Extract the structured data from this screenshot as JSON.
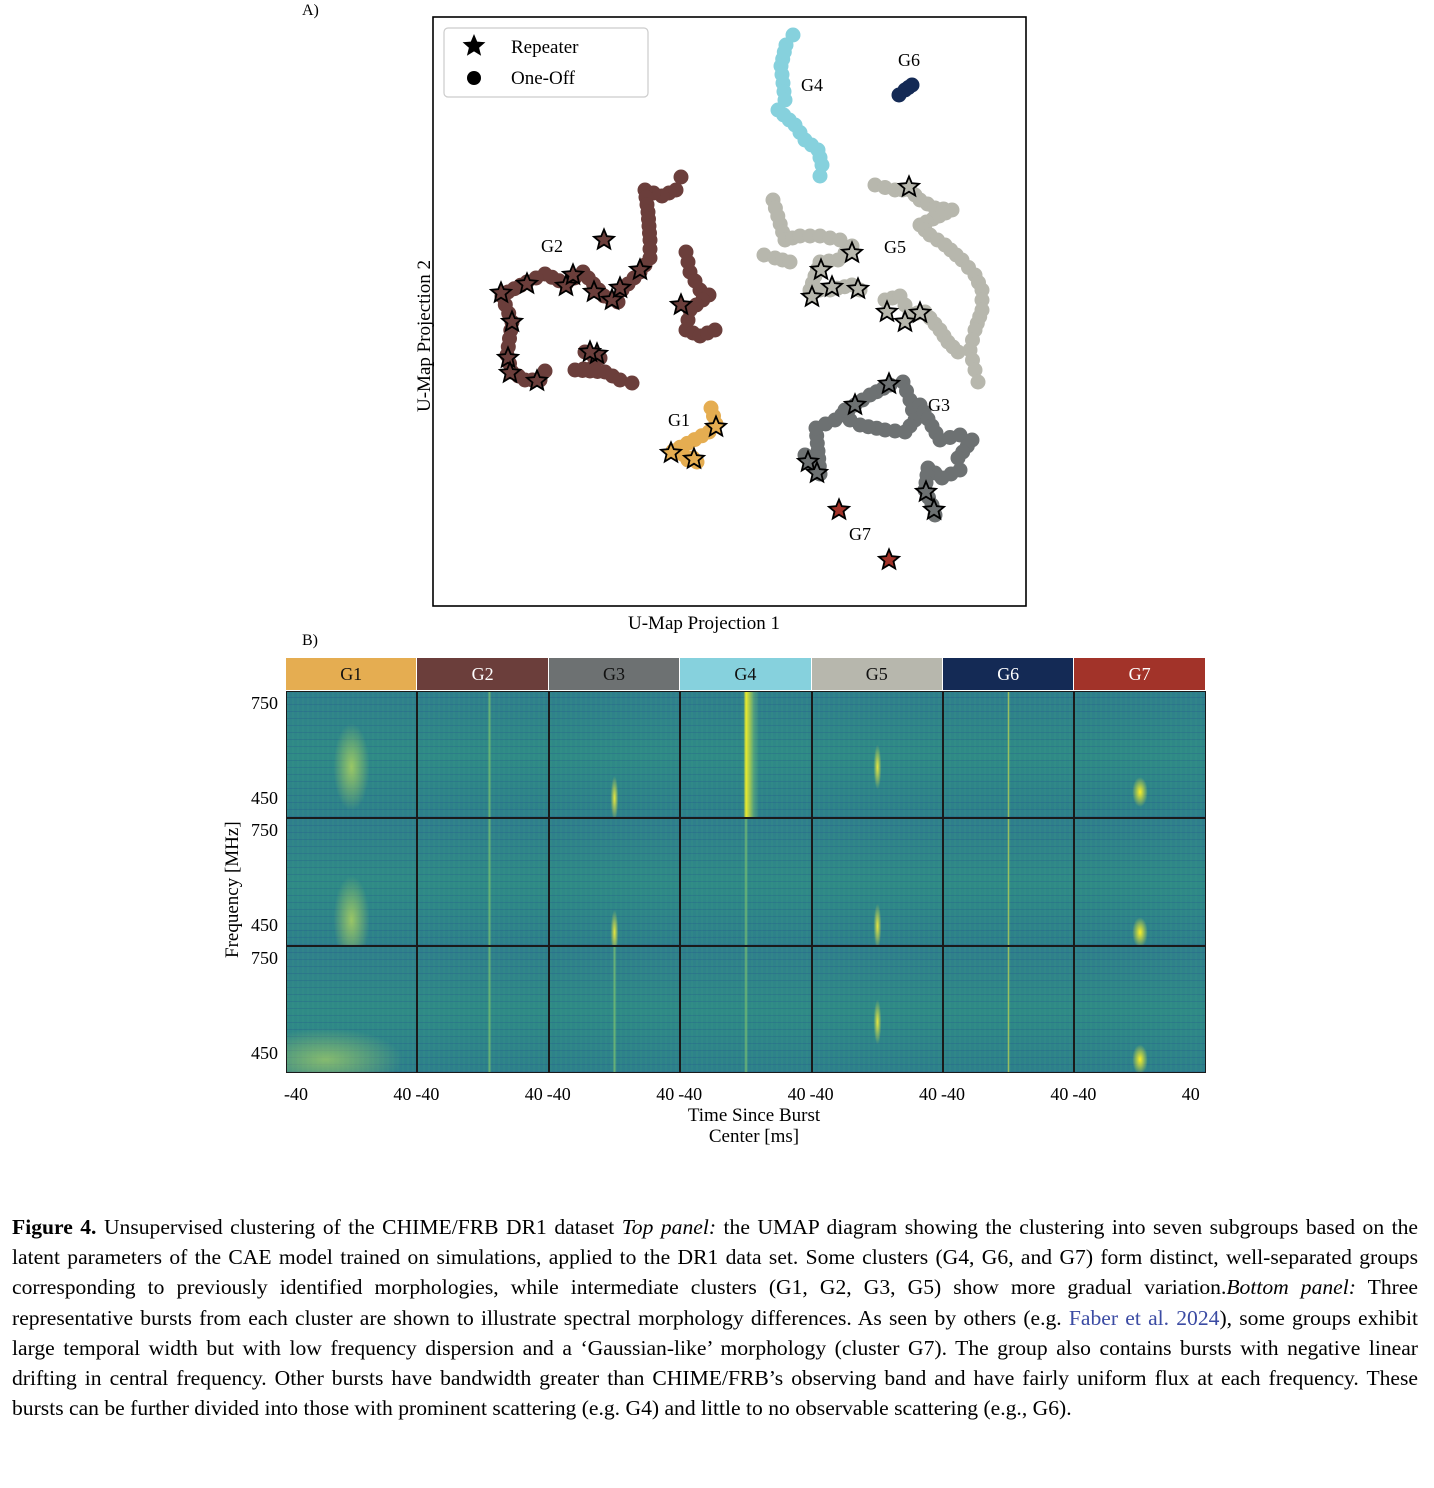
{
  "panel_a": {
    "letter": "A)",
    "xlabel": "U-Map Projection 1",
    "ylabel": "U-Map Projection 2",
    "legend": [
      {
        "label": "Repeater",
        "marker": "star"
      },
      {
        "label": "One-Off",
        "marker": "circle"
      }
    ],
    "group_labels": [
      "G1",
      "G2",
      "G3",
      "G4",
      "G5",
      "G6",
      "G7"
    ]
  },
  "panel_b": {
    "letter": "B)",
    "groups": [
      {
        "name": "G1",
        "color": "#e5ad51"
      },
      {
        "name": "G2",
        "color": "#6b3e3b"
      },
      {
        "name": "G3",
        "color": "#6d7172"
      },
      {
        "name": "G4",
        "color": "#86d1dd"
      },
      {
        "name": "G5",
        "color": "#b7b7ad"
      },
      {
        "name": "G6",
        "color": "#142a55"
      },
      {
        "name": "G7",
        "color": "#a23329"
      }
    ],
    "ylabel": "Frequency [MHz]",
    "yticks": [
      "750",
      "450"
    ],
    "xticks": [
      "-40",
      "40"
    ],
    "xlabel_line1": "Time Since Burst",
    "xlabel_line2": "Center [ms]"
  },
  "chart_data": {
    "type": "scatter",
    "xlabel": "U-Map Projection 1",
    "ylabel": "U-Map Projection 2",
    "legend_placement": "top-left",
    "grid": false,
    "series": [
      {
        "name": "G1",
        "color": "#e5ad51"
      },
      {
        "name": "G2",
        "color": "#6b3e3b"
      },
      {
        "name": "G3",
        "color": "#6d7172"
      },
      {
        "name": "G4",
        "color": "#86d1dd"
      },
      {
        "name": "G5",
        "color": "#b7b7ad"
      },
      {
        "name": "G6",
        "color": "#142a55"
      },
      {
        "name": "G7",
        "color": "#a23329"
      }
    ]
  },
  "caption": {
    "lead": "Figure 4.",
    "text1": " Unsupervised clustering of the CHIME/FRB DR1 dataset ",
    "top_panel": "Top panel:",
    "text2": " the UMAP diagram showing the clustering into seven subgroups based on the latent parameters of the CAE model trained on simulations, applied to the DR1 data set. Some clusters (G4, G6, and G7) form distinct, well-separated groups corresponding to previously identified morphologies, while intermediate clusters (G1, G2, G3, G5) show more gradual variation.",
    "bottom_panel": "Bottom panel:",
    "text3": " Three representative bursts from each cluster are shown to illustrate spectral morphology differences. As seen by others (e.g. ",
    "citation": "Faber et al. 2024",
    "text4": "), some groups exhibit large temporal width but with low frequency dispersion and a ‘Gaussian-like’ morphology (cluster G7). The group also contains bursts with negative linear drifting in central frequency. Other bursts have bandwidth greater than CHIME/FRB’s observing band and have fairly uniform flux at each frequency. These bursts can be further divided into those with prominent scattering (e.g. G4) and little to no observable scattering (e.g., G6)."
  }
}
